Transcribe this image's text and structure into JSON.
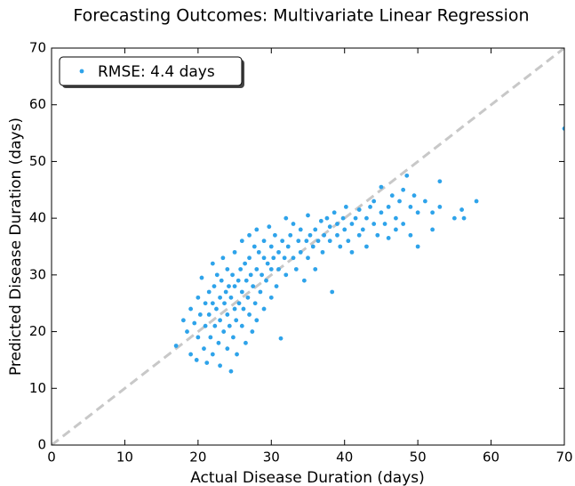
{
  "chart_data": {
    "type": "scatter",
    "title": "Forecasting Outcomes: Multivariate Linear Regression",
    "xlabel": "Actual Disease Duration (days)",
    "ylabel": "Predicted Disease Duration (days)",
    "xlim": [
      0,
      70
    ],
    "ylim": [
      0,
      70
    ],
    "xticks": [
      0,
      10,
      20,
      30,
      40,
      50,
      60,
      70
    ],
    "yticks": [
      0,
      10,
      20,
      30,
      40,
      50,
      60,
      70
    ],
    "grid": false,
    "legend": "upper left",
    "identity_line": true,
    "identity_line_color": "#c8c8c8",
    "series": [
      {
        "name": "RMSE: 4.4 days",
        "color": "#2ea3ea",
        "x": [
          17,
          18,
          18.5,
          19,
          19,
          19.5,
          19.8,
          20,
          20,
          20.3,
          20.5,
          20.8,
          21,
          21,
          21.2,
          21.5,
          21.5,
          21.7,
          22,
          22,
          22,
          22.2,
          22.3,
          22.5,
          22.6,
          22.8,
          23,
          23,
          23,
          23.2,
          23.4,
          23.5,
          23.6,
          23.8,
          24,
          24,
          24,
          24.2,
          24.3,
          24.5,
          24.5,
          24.7,
          24.8,
          25,
          25,
          25,
          25.2,
          25.3,
          25.5,
          25.6,
          25.8,
          26,
          26,
          26,
          26.2,
          26.4,
          26.5,
          26.6,
          26.8,
          27,
          27,
          27,
          27.2,
          27.4,
          27.5,
          27.7,
          27.8,
          28,
          28,
          28,
          28.3,
          28.5,
          28.7,
          29,
          29,
          29,
          29.3,
          29.5,
          29.7,
          30,
          30,
          30,
          30.3,
          30.5,
          30.7,
          31,
          31,
          31.3,
          31.5,
          31.8,
          32,
          32,
          32.3,
          32.6,
          33,
          33,
          33.4,
          33.7,
          34,
          34,
          34.5,
          34.8,
          35,
          35,
          35.3,
          35.7,
          36,
          36,
          36.4,
          36.8,
          37,
          37.2,
          37.6,
          38,
          38,
          38.3,
          38.6,
          39,
          39,
          39.4,
          39.8,
          40,
          40.2,
          40.5,
          41,
          41,
          41.5,
          42,
          42,
          42.5,
          43,
          43,
          43.5,
          44,
          44,
          44.5,
          45,
          45,
          45.5,
          46,
          46,
          46.5,
          47,
          47,
          47.5,
          48,
          48,
          48.5,
          49,
          49,
          49.5,
          50,
          50,
          51,
          52,
          52,
          53,
          53,
          55,
          56,
          56.3,
          58,
          70
        ],
        "values": [
          17.5,
          22,
          20,
          24,
          16,
          21.5,
          15,
          26,
          19,
          23,
          29.5,
          17,
          25,
          21,
          14.5,
          27,
          23,
          19,
          32,
          25,
          16,
          28,
          21,
          24,
          30,
          18,
          26,
          22,
          14,
          29,
          33,
          20,
          25,
          27,
          23,
          31,
          17,
          28,
          21,
          13,
          26,
          30,
          19,
          24,
          34,
          28,
          22,
          16,
          29,
          25,
          31,
          21,
          27,
          36,
          24,
          32,
          18,
          29,
          26,
          33,
          23,
          37,
          30,
          20,
          28,
          35,
          25,
          31,
          38,
          22,
          34,
          27,
          30,
          33,
          24,
          36,
          29,
          32,
          38.5,
          31,
          35,
          26,
          33,
          37,
          28,
          34,
          31,
          18.8,
          36,
          33,
          40,
          30,
          35,
          37,
          33,
          39,
          31,
          36,
          34,
          38,
          29,
          36,
          40.5,
          33,
          37,
          35,
          38,
          31,
          36,
          39.5,
          34,
          37,
          40,
          36,
          38.5,
          27,
          41,
          37,
          39,
          35,
          40,
          38,
          42,
          36,
          39,
          34,
          40,
          37,
          41.5,
          38,
          40,
          35,
          42,
          39,
          43,
          37,
          41,
          45.5,
          39,
          42,
          36.5,
          44,
          40,
          38,
          43,
          45,
          39,
          47.5,
          42,
          37,
          44,
          41,
          35,
          43,
          41,
          38,
          46.5,
          42,
          40,
          41.5,
          40,
          43,
          55.8
        ]
      }
    ]
  }
}
